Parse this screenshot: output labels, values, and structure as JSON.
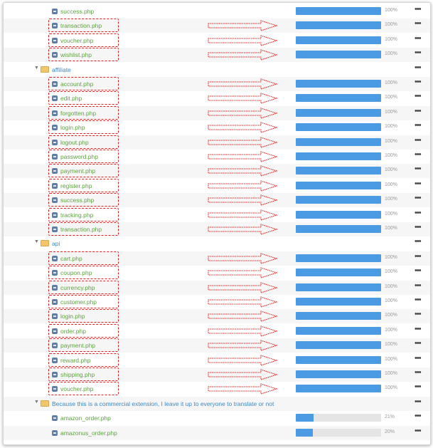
{
  "rows": [
    {
      "name": "success.php",
      "type": "file",
      "indent": 2,
      "progress": 100,
      "pct": "100%",
      "highlight": false
    },
    {
      "name": "transaction.php",
      "type": "file",
      "indent": 2,
      "progress": 100,
      "pct": "100%",
      "highlight": true
    },
    {
      "name": "voucher.php",
      "type": "file",
      "indent": 2,
      "progress": 100,
      "pct": "100%",
      "highlight": true
    },
    {
      "name": "wishlist.php",
      "type": "file",
      "indent": 2,
      "progress": 100,
      "pct": "100%",
      "highlight": true
    },
    {
      "name": "affiliate",
      "type": "folder",
      "indent": 1
    },
    {
      "name": "account.php",
      "type": "file",
      "indent": 2,
      "progress": 100,
      "pct": "100%",
      "highlight": true
    },
    {
      "name": "edit.php",
      "type": "file",
      "indent": 2,
      "progress": 100,
      "pct": "100%",
      "highlight": true
    },
    {
      "name": "forgotten.php",
      "type": "file",
      "indent": 2,
      "progress": 100,
      "pct": "100%",
      "highlight": true
    },
    {
      "name": "login.php",
      "type": "file",
      "indent": 2,
      "progress": 100,
      "pct": "100%",
      "highlight": true
    },
    {
      "name": "logout.php",
      "type": "file",
      "indent": 2,
      "progress": 100,
      "pct": "100%",
      "highlight": true
    },
    {
      "name": "password.php",
      "type": "file",
      "indent": 2,
      "progress": 100,
      "pct": "100%",
      "highlight": true
    },
    {
      "name": "payment.php",
      "type": "file",
      "indent": 2,
      "progress": 100,
      "pct": "100%",
      "highlight": true
    },
    {
      "name": "register.php",
      "type": "file",
      "indent": 2,
      "progress": 100,
      "pct": "100%",
      "highlight": true
    },
    {
      "name": "success.php",
      "type": "file",
      "indent": 2,
      "progress": 100,
      "pct": "100%",
      "highlight": true
    },
    {
      "name": "tracking.php",
      "type": "file",
      "indent": 2,
      "progress": 100,
      "pct": "100%",
      "highlight": true
    },
    {
      "name": "transaction.php",
      "type": "file",
      "indent": 2,
      "progress": 100,
      "pct": "100%",
      "highlight": true
    },
    {
      "name": "api",
      "type": "folder",
      "indent": 1
    },
    {
      "name": "cart.php",
      "type": "file",
      "indent": 2,
      "progress": 100,
      "pct": "100%",
      "highlight": true
    },
    {
      "name": "coupon.php",
      "type": "file",
      "indent": 2,
      "progress": 100,
      "pct": "100%",
      "highlight": true
    },
    {
      "name": "currency.php",
      "type": "file",
      "indent": 2,
      "progress": 100,
      "pct": "100%",
      "highlight": true
    },
    {
      "name": "customer.php",
      "type": "file",
      "indent": 2,
      "progress": 100,
      "pct": "100%",
      "highlight": true
    },
    {
      "name": "login.php",
      "type": "file",
      "indent": 2,
      "progress": 100,
      "pct": "100%",
      "highlight": true
    },
    {
      "name": "order.php",
      "type": "file",
      "indent": 2,
      "progress": 100,
      "pct": "100%",
      "highlight": true
    },
    {
      "name": "payment.php",
      "type": "file",
      "indent": 2,
      "progress": 100,
      "pct": "100%",
      "highlight": true
    },
    {
      "name": "reward.php",
      "type": "file",
      "indent": 2,
      "progress": 100,
      "pct": "100%",
      "highlight": true
    },
    {
      "name": "shipping.php",
      "type": "file",
      "indent": 2,
      "progress": 100,
      "pct": "100%",
      "highlight": true
    },
    {
      "name": "voucher.php",
      "type": "file",
      "indent": 2,
      "progress": 100,
      "pct": "100%",
      "highlight": true
    },
    {
      "name": "Because this is a commercial extension, I leave it up to everyone to translate or not",
      "type": "folder",
      "indent": 1
    },
    {
      "name": "amazon_order.php",
      "type": "file",
      "indent": 2,
      "progress": 21,
      "pct": "21%",
      "highlight": false
    },
    {
      "name": "amazonus_order.php",
      "type": "file",
      "indent": 2,
      "progress": 20,
      "pct": "20%",
      "highlight": false
    }
  ],
  "menu_label": "•••",
  "colors": {
    "file_name": "#5ca33e",
    "folder_name": "#3a8bc8",
    "bar_fill": "#4a9be3",
    "bar_track": "#e5e5e5",
    "annotation": "#e02020"
  },
  "icons": {
    "file": "php-file-icon",
    "folder": "folder-icon",
    "expand": "caret-down-icon",
    "menu": "more-options-icon",
    "annotation": "red-arrow-icon"
  }
}
